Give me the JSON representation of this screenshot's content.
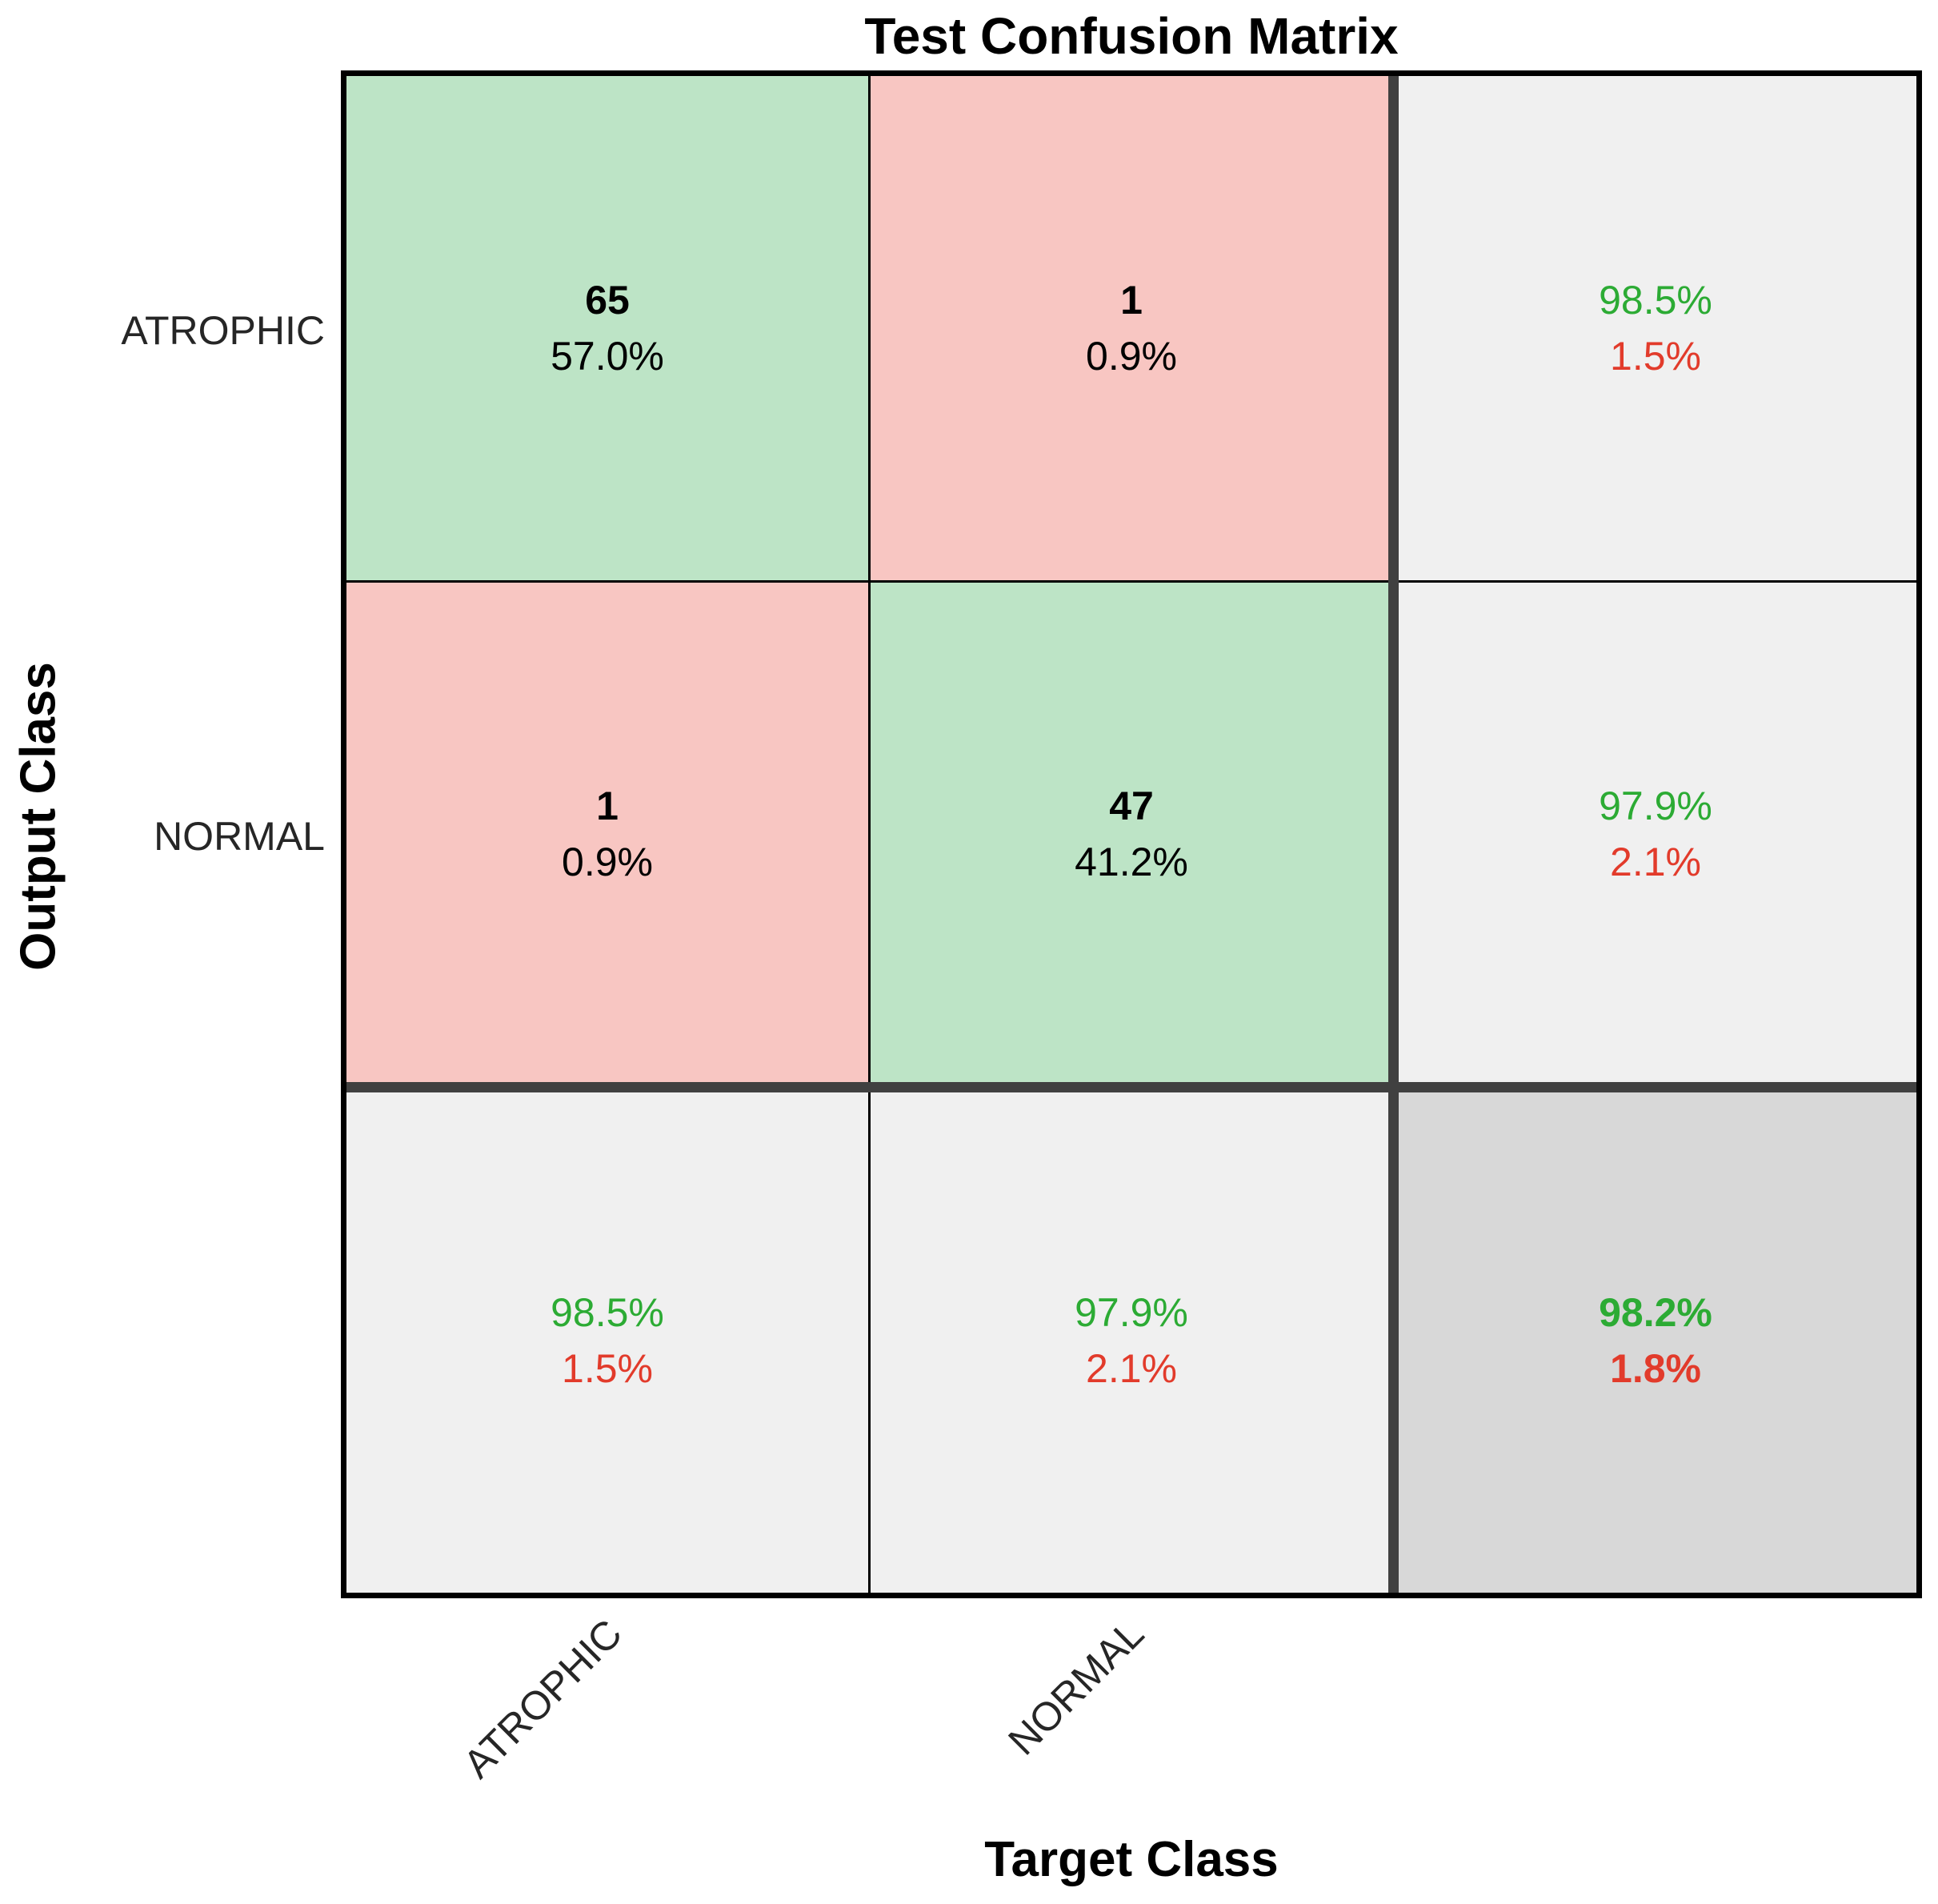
{
  "title": "Test Confusion Matrix",
  "axes": {
    "y_label": "Output Class",
    "x_label": "Target Class",
    "row_labels": [
      "ATROPHIC",
      "NORMAL"
    ],
    "col_labels": [
      "ATROPHIC",
      "NORMAL"
    ]
  },
  "cells": {
    "r0c0": {
      "line1": "65",
      "line2": "57.0%"
    },
    "r0c1": {
      "line1": "1",
      "line2": "0.9%"
    },
    "r0c2": {
      "line1": "98.5%",
      "line2": "1.5%"
    },
    "r1c0": {
      "line1": "1",
      "line2": "0.9%"
    },
    "r1c1": {
      "line1": "47",
      "line2": "41.2%"
    },
    "r1c2": {
      "line1": "97.9%",
      "line2": "2.1%"
    },
    "r2c0": {
      "line1": "98.5%",
      "line2": "1.5%"
    },
    "r2c1": {
      "line1": "97.9%",
      "line2": "2.1%"
    },
    "r2c2": {
      "line1": "98.2%",
      "line2": "1.8%"
    }
  },
  "colors": {
    "correct_cell_bg": "#bde4c6",
    "incorrect_cell_bg": "#f8c6c2",
    "summary_cell_bg": "#f0f0f0",
    "total_cell_bg": "#d8d8d8",
    "positive_text": "#2cab34",
    "negative_text": "#e23b2b",
    "separator": "#404040"
  },
  "chart_data": {
    "type": "heatmap",
    "title": "Test Confusion Matrix",
    "xlabel": "Target Class",
    "ylabel": "Output Class",
    "classes": [
      "ATROPHIC",
      "NORMAL"
    ],
    "counts": [
      [
        65,
        1
      ],
      [
        1,
        47
      ]
    ],
    "count_percents": [
      [
        "57.0%",
        "0.9%"
      ],
      [
        "0.9%",
        "41.2%"
      ]
    ],
    "row_summary_right": [
      {
        "correct": "98.5%",
        "incorrect": "1.5%"
      },
      {
        "correct": "97.9%",
        "incorrect": "2.1%"
      }
    ],
    "col_summary_bottom": [
      {
        "correct": "98.5%",
        "incorrect": "1.5%"
      },
      {
        "correct": "97.9%",
        "incorrect": "2.1%"
      }
    ],
    "overall_accuracy": "98.2%",
    "overall_error": "1.8%",
    "legend_position": "none",
    "grid": "on"
  }
}
